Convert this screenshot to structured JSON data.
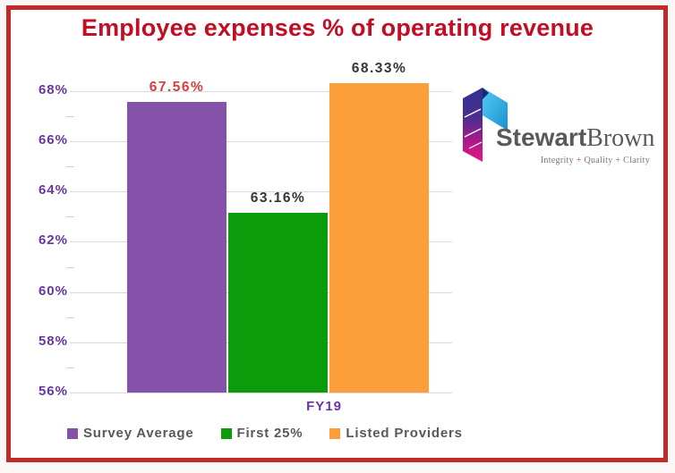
{
  "frame": {
    "border_color": "#C22A2A",
    "card_background": "#FFFFFF"
  },
  "title": {
    "text": "Employee expenses % of operating revenue",
    "color": "#C30D24"
  },
  "axis": {
    "tick_color": "#6836A4",
    "gridline_color": "#D9D9D9"
  },
  "chart_data": {
    "type": "bar",
    "title": "Employee expenses % of operating revenue",
    "categories": [
      "FY19"
    ],
    "series": [
      {
        "name": "Survey Average",
        "values": [
          67.56
        ],
        "label": "67.56%",
        "color": "#8552A9",
        "label_color": "#D43F3F"
      },
      {
        "name": "First 25%",
        "values": [
          63.16
        ],
        "label": "63.16%",
        "color": "#0B9B0B",
        "label_color": "#363636"
      },
      {
        "name": "Listed Providers",
        "values": [
          68.33
        ],
        "label": "68.33%",
        "color": "#FC9F3A",
        "label_color": "#363636"
      }
    ],
    "xlabel": "FY19",
    "ylabel": "",
    "ylim": [
      56,
      68.5
    ],
    "yticks": [
      56,
      58,
      60,
      62,
      64,
      66,
      68
    ],
    "ytick_suffix": "%",
    "grid": true,
    "legend_position": "bottom"
  },
  "legend": {
    "items": [
      "Survey Average",
      "First 25%",
      "Listed Providers"
    ]
  },
  "logo": {
    "brand_bold": "Stewart",
    "brand_light": "Brown",
    "text_color": "#58595B",
    "tagline_parts": [
      {
        "text": "Integrity",
        "color": "#77787B"
      },
      {
        "text": " + ",
        "color": "#D95070"
      },
      {
        "text": "Quality",
        "color": "#77787B"
      },
      {
        "text": " + ",
        "color": "#6F6AAD"
      },
      {
        "text": "Clarity",
        "color": "#77787B"
      }
    ],
    "icon_colors": {
      "indigo": "#2E3192",
      "cyan_light": "#53CCF2",
      "cyan_dark": "#1D8FD1",
      "magenta": "#ED1580"
    }
  }
}
